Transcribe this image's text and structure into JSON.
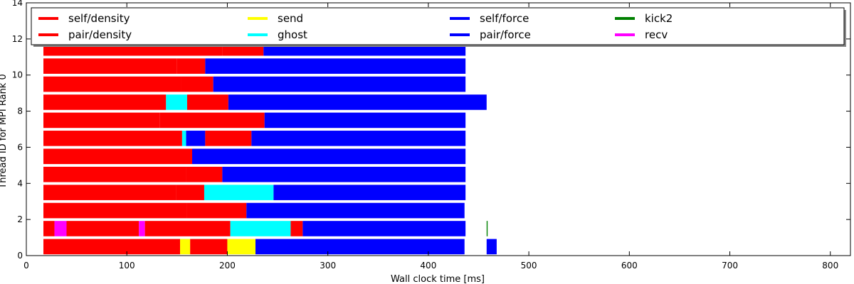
{
  "chart_data": {
    "type": "bar",
    "orientation": "horizontal-timeline",
    "xlabel": "Wall clock time [ms]",
    "ylabel": "Thread ID for MPI Rank 0",
    "xlim": [
      0,
      820
    ],
    "ylim": [
      0,
      14
    ],
    "xticks": [
      0,
      100,
      200,
      300,
      400,
      500,
      600,
      700,
      800
    ],
    "yticks": [
      0,
      2,
      4,
      6,
      8,
      10,
      12,
      14
    ],
    "grid": false,
    "legend_position": "top",
    "legend": [
      {
        "name": "self/density",
        "color": "#ff0000"
      },
      {
        "name": "pair/density",
        "color": "#ff0000"
      },
      {
        "name": "send",
        "color": "#ffff00"
      },
      {
        "name": "ghost",
        "color": "#00ffff"
      },
      {
        "name": "self/force",
        "color": "#0000ff"
      },
      {
        "name": "pair/force",
        "color": "#0000ff"
      },
      {
        "name": "kick2",
        "color": "#008000"
      },
      {
        "name": "recv",
        "color": "#ff00ff"
      }
    ],
    "threads": [
      {
        "thread": 0,
        "tasks": [
          {
            "start": 17,
            "end": 153,
            "task": "self/density"
          },
          {
            "start": 153,
            "end": 163,
            "task": "send"
          },
          {
            "start": 163,
            "end": 200,
            "task": "pair/density"
          },
          {
            "start": 200,
            "end": 228,
            "task": "send"
          },
          {
            "start": 228,
            "end": 436,
            "task": "pair/force"
          },
          {
            "start": 458,
            "end": 468,
            "task": "self/force"
          }
        ]
      },
      {
        "thread": 1,
        "tasks": [
          {
            "start": 17,
            "end": 28,
            "task": "pair/density"
          },
          {
            "start": 28,
            "end": 40,
            "task": "recv"
          },
          {
            "start": 40,
            "end": 112,
            "task": "pair/density"
          },
          {
            "start": 112,
            "end": 118,
            "task": "recv"
          },
          {
            "start": 118,
            "end": 203,
            "task": "pair/density"
          },
          {
            "start": 203,
            "end": 263,
            "task": "ghost"
          },
          {
            "start": 263,
            "end": 275,
            "task": "pair/density"
          },
          {
            "start": 275,
            "end": 437,
            "task": "pair/force"
          },
          {
            "start": 458,
            "end": 459,
            "task": "kick2"
          }
        ]
      },
      {
        "thread": 2,
        "tasks": [
          {
            "start": 17,
            "end": 160,
            "task": "self/density"
          },
          {
            "start": 160,
            "end": 219,
            "task": "pair/density"
          },
          {
            "start": 219,
            "end": 436,
            "task": "pair/force"
          }
        ]
      },
      {
        "thread": 3,
        "tasks": [
          {
            "start": 17,
            "end": 149,
            "task": "self/density"
          },
          {
            "start": 149,
            "end": 177,
            "task": "pair/density"
          },
          {
            "start": 177,
            "end": 246,
            "task": "ghost"
          },
          {
            "start": 246,
            "end": 437,
            "task": "pair/force"
          }
        ]
      },
      {
        "thread": 4,
        "tasks": [
          {
            "start": 17,
            "end": 159,
            "task": "self/density"
          },
          {
            "start": 159,
            "end": 195,
            "task": "pair/density"
          },
          {
            "start": 195,
            "end": 437,
            "task": "pair/force"
          }
        ]
      },
      {
        "thread": 5,
        "tasks": [
          {
            "start": 17,
            "end": 131,
            "task": "self/density"
          },
          {
            "start": 131,
            "end": 165,
            "task": "pair/density"
          },
          {
            "start": 165,
            "end": 437,
            "task": "pair/force"
          }
        ]
      },
      {
        "thread": 6,
        "tasks": [
          {
            "start": 17,
            "end": 155,
            "task": "self/density"
          },
          {
            "start": 155,
            "end": 159,
            "task": "ghost"
          },
          {
            "start": 159,
            "end": 178,
            "task": "pair/force"
          },
          {
            "start": 178,
            "end": 224,
            "task": "pair/density"
          },
          {
            "start": 224,
            "end": 437,
            "task": "pair/force"
          }
        ]
      },
      {
        "thread": 7,
        "tasks": [
          {
            "start": 17,
            "end": 133,
            "task": "self/density"
          },
          {
            "start": 133,
            "end": 237,
            "task": "pair/density"
          },
          {
            "start": 237,
            "end": 437,
            "task": "pair/force"
          }
        ]
      },
      {
        "thread": 8,
        "tasks": [
          {
            "start": 17,
            "end": 139,
            "task": "self/density"
          },
          {
            "start": 139,
            "end": 160,
            "task": "ghost"
          },
          {
            "start": 160,
            "end": 201,
            "task": "pair/density"
          },
          {
            "start": 201,
            "end": 458,
            "task": "pair/force"
          }
        ]
      },
      {
        "thread": 9,
        "tasks": [
          {
            "start": 17,
            "end": 154,
            "task": "self/density"
          },
          {
            "start": 154,
            "end": 186,
            "task": "pair/density"
          },
          {
            "start": 186,
            "end": 437,
            "task": "pair/force"
          }
        ]
      },
      {
        "thread": 10,
        "tasks": [
          {
            "start": 17,
            "end": 150,
            "task": "self/density"
          },
          {
            "start": 150,
            "end": 178,
            "task": "pair/density"
          },
          {
            "start": 178,
            "end": 437,
            "task": "pair/force"
          }
        ]
      },
      {
        "thread": 11,
        "tasks": [
          {
            "start": 17,
            "end": 195,
            "task": "self/density"
          },
          {
            "start": 195,
            "end": 236,
            "task": "pair/density"
          },
          {
            "start": 236,
            "end": 437,
            "task": "pair/force"
          }
        ]
      }
    ]
  }
}
